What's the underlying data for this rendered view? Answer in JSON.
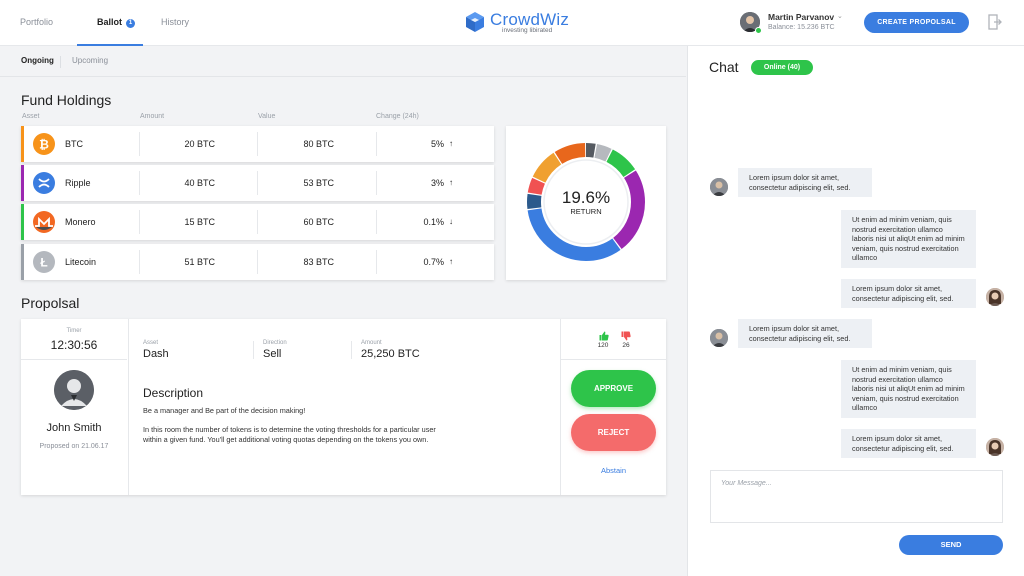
{
  "nav": {
    "tabs": [
      {
        "label": "Portfolio"
      },
      {
        "label": "Ballot",
        "badge": "1"
      },
      {
        "label": "History"
      }
    ]
  },
  "brand": {
    "name": "CrowdWiz",
    "tagline": "investing libirated",
    "color": "#3a7de0"
  },
  "user": {
    "name": "Martin Parvanov",
    "balance": "Balance: 15.236 BTC",
    "status_color": "#2ec44a"
  },
  "header": {
    "create_label": "CREATE PROPOLSAL"
  },
  "subtabs": [
    {
      "label": "Ongoing"
    },
    {
      "label": "Upcoming"
    }
  ],
  "holdings": {
    "title": "Fund Holdings",
    "columns": [
      "Asset",
      "Amount",
      "Value",
      "Change (24h)"
    ],
    "rows": [
      {
        "asset": "BTC",
        "amount": "20 BTC",
        "value": "80 BTC",
        "change": "5%",
        "direction": "up",
        "color": "#f7931a",
        "icon": "bitcoin-icon"
      },
      {
        "asset": "Ripple",
        "amount": "40 BTC",
        "value": "53 BTC",
        "change": "3%",
        "direction": "up",
        "color": "#9b27b0",
        "icon": "ripple-icon"
      },
      {
        "asset": "Monero",
        "amount": "15 BTC",
        "value": "60 BTC",
        "change": "0.1%",
        "direction": "down",
        "color": "#2ec44a",
        "icon": "monero-icon"
      },
      {
        "asset": "Litecoin",
        "amount": "51 BTC",
        "value": "83 BTC",
        "change": "0.7%",
        "direction": "up",
        "color": "#9aa0a8",
        "icon": "litecoin-icon"
      }
    ]
  },
  "donut": {
    "value": "19.6%",
    "label": "RETURN",
    "segments": [
      {
        "fraction": 0.03,
        "color": "#555a61"
      },
      {
        "fraction": 0.045,
        "color": "#b6b9be"
      },
      {
        "fraction": 0.085,
        "color": "#2ec44a"
      },
      {
        "fraction": 0.24,
        "color": "#9b27b0"
      },
      {
        "fraction": 0.33,
        "color": "#3a7de0"
      },
      {
        "fraction": 0.045,
        "color": "#2c5a8c"
      },
      {
        "fraction": 0.045,
        "color": "#f05252"
      },
      {
        "fraction": 0.09,
        "color": "#f0a030"
      },
      {
        "fraction": 0.09,
        "color": "#e8671c"
      }
    ]
  },
  "proposal": {
    "title": "Propolsal",
    "timer_label": "Timer",
    "timer": "12:30:56",
    "proposer": "John Smith",
    "proposed_on": "Proposed on 21.06.17",
    "asset_label": "Asset",
    "asset": "Dash",
    "direction_label": "Direction",
    "direction": "Sell",
    "amount_label": "Amount",
    "amount": "25,250 BTC",
    "description_title": "Description",
    "description_1": "Be a manager and Be part of the decision making!",
    "description_2": "In this room the number of tokens is to determine the voting thresholds for a particular user within a given fund. You'll get additional voting quotas depending on the tokens you own.",
    "upvotes": "120",
    "downvotes": "26",
    "approve_label": "APPROVE",
    "reject_label": "REJECT",
    "abstain_label": "Abstain",
    "approve_color": "#2ec44a",
    "reject_color": "#f46b6b"
  },
  "chat": {
    "title": "Chat",
    "online": "Online (40)",
    "messages": [
      {
        "text": "Lorem ipsum dolor sit amet, consectetur adipiscing elit, sed.",
        "side": "left"
      },
      {
        "text": "Ut enim ad minim veniam, quis nostrud exercitation ullamco laboris nisi ut aliqUt enim ad minim veniam, quis nostrud exercitation ullamco",
        "side": "right"
      },
      {
        "text": "Lorem ipsum dolor sit amet, consectetur adipiscing elit, sed.",
        "side": "right"
      },
      {
        "text": "Lorem ipsum dolor sit amet, consectetur adipiscing elit, sed.",
        "side": "left"
      },
      {
        "text": "Ut enim ad minim veniam, quis nostrud exercitation ullamco laboris nisi ut aliqUt enim ad minim veniam, quis nostrud exercitation ullamco",
        "side": "right"
      },
      {
        "text": "Lorem ipsum dolor sit amet, consectetur adipiscing elit, sed.",
        "side": "right"
      }
    ],
    "input_placeholder": "Your Message...",
    "send_label": "SEND"
  }
}
